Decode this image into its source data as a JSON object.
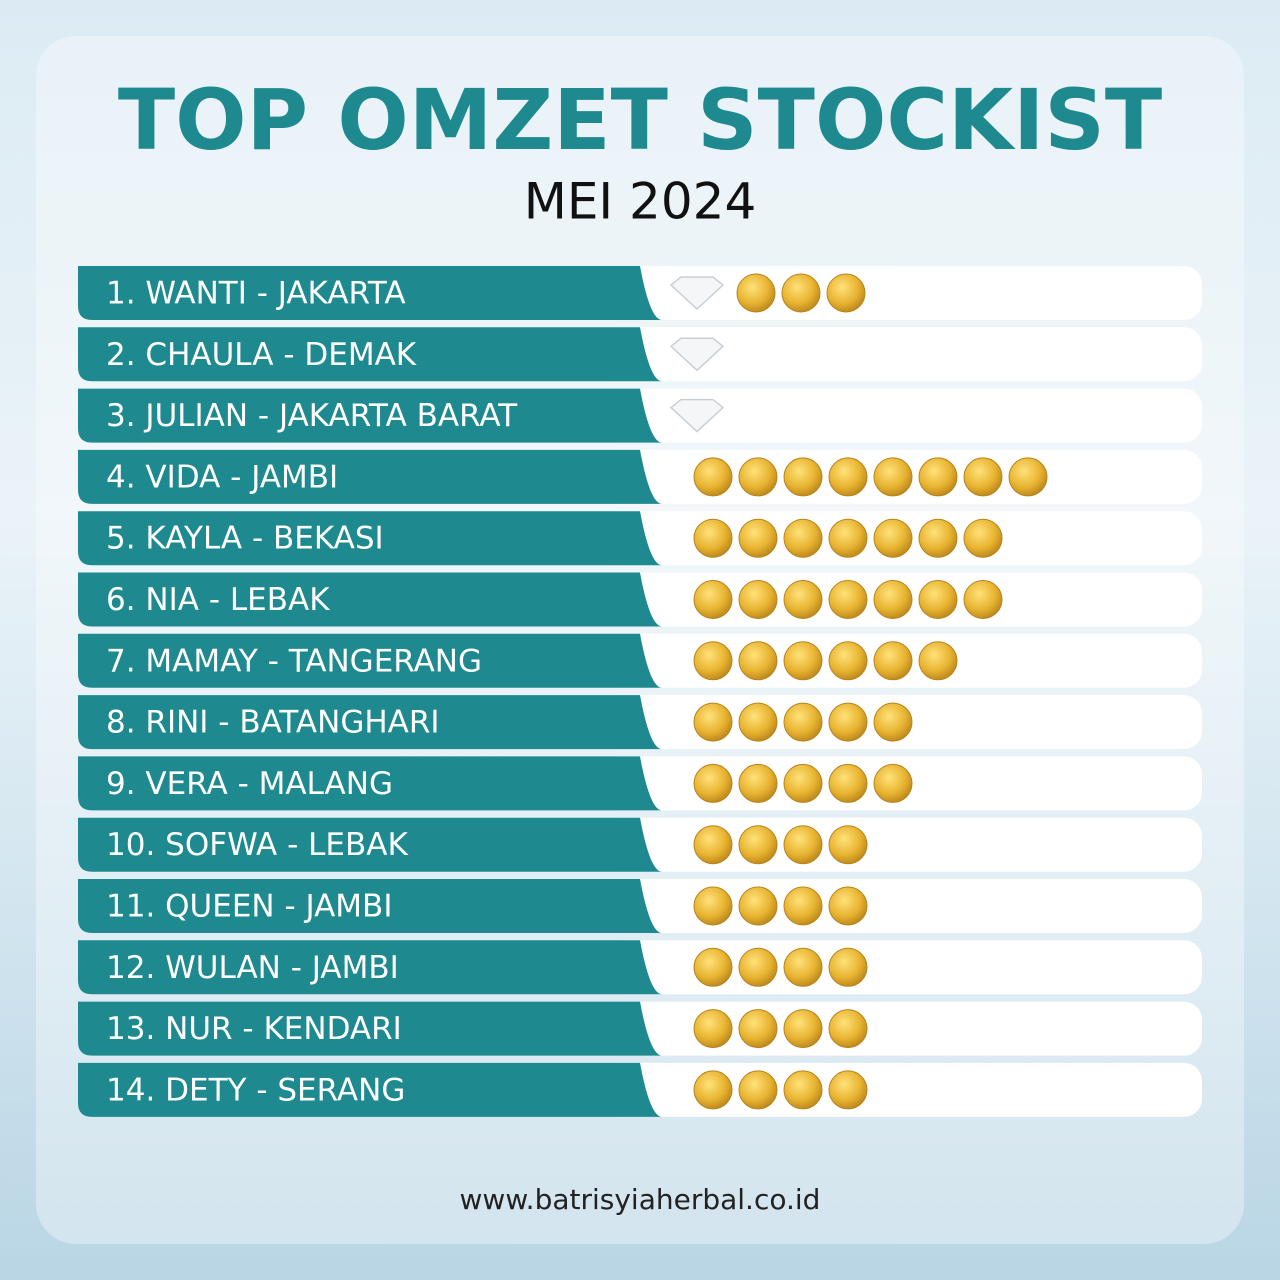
{
  "header": {
    "title": "TOP OMZET STOCKIST",
    "subtitle": "MEI 2024"
  },
  "rows": [
    {
      "label": "1. WANTI - JAKARTA",
      "diamonds": 1,
      "coins": 3
    },
    {
      "label": "2. CHAULA - DEMAK",
      "diamonds": 1,
      "coins": 0
    },
    {
      "label": "3. JULIAN - JAKARTA BARAT",
      "diamonds": 1,
      "coins": 0
    },
    {
      "label": "4. VIDA - JAMBI",
      "diamonds": 0,
      "coins": 8
    },
    {
      "label": "5. KAYLA - BEKASI",
      "diamonds": 0,
      "coins": 7
    },
    {
      "label": "6. NIA - LEBAK",
      "diamonds": 0,
      "coins": 7
    },
    {
      "label": "7. MAMAY - TANGERANG",
      "diamonds": 0,
      "coins": 6
    },
    {
      "label": "8. RINI - BATANGHARI",
      "diamonds": 0,
      "coins": 5
    },
    {
      "label": "9. VERA - MALANG",
      "diamonds": 0,
      "coins": 5
    },
    {
      "label": "10. SOFWA - LEBAK",
      "diamonds": 0,
      "coins": 4
    },
    {
      "label": "11. QUEEN - JAMBI",
      "diamonds": 0,
      "coins": 4
    },
    {
      "label": "12. WULAN - JAMBI",
      "diamonds": 0,
      "coins": 4
    },
    {
      "label": "13. NUR - KENDARI",
      "diamonds": 0,
      "coins": 4
    },
    {
      "label": "14. DETY - SERANG",
      "diamonds": 0,
      "coins": 4
    }
  ],
  "footer": {
    "url": "www.batrisyiaherbal.co.id"
  }
}
